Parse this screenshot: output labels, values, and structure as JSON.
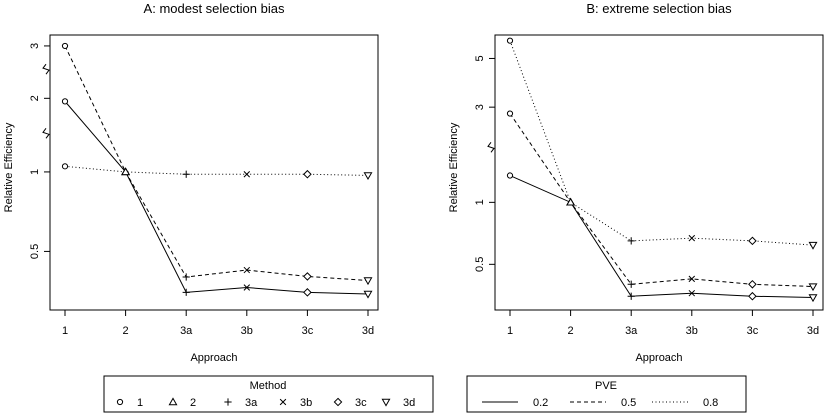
{
  "chart_data": [
    {
      "type": "line",
      "title": "A: modest selection bias",
      "xlabel": "Approach",
      "ylabel": "Relative Efficiency",
      "categories": [
        "1",
        "2",
        "3a",
        "3b",
        "3c",
        "3d"
      ],
      "y_scale": "log",
      "y_ticks": [
        {
          "label": "3",
          "value": 3.0
        },
        {
          "label": "2",
          "value": 1.9
        },
        {
          "label": "1",
          "value": 1.0
        },
        {
          "label": "0.5",
          "value": 0.5
        }
      ],
      "axis_break_marks": [
        2.45,
        1.4
      ],
      "ylim": [
        0.3,
        3.3
      ],
      "series": [
        {
          "name": "0.2",
          "linestyle": "solid",
          "values": [
            1.85,
            1.0,
            0.35,
            0.365,
            0.35,
            0.345
          ]
        },
        {
          "name": "0.5",
          "linestyle": "dashed",
          "values": [
            3.0,
            1.0,
            0.4,
            0.425,
            0.402,
            0.388
          ]
        },
        {
          "name": "0.8",
          "linestyle": "dotted",
          "values": [
            1.05,
            1.0,
            0.98,
            0.98,
            0.98,
            0.97
          ]
        }
      ]
    },
    {
      "type": "line",
      "title": "B: extreme selection bias",
      "xlabel": "Approach",
      "ylabel": "Relative Efficiency",
      "categories": [
        "1",
        "2",
        "3a",
        "3b",
        "3c",
        "3d"
      ],
      "y_scale": "log",
      "y_ticks": [
        {
          "label": "5",
          "value": 5.0
        },
        {
          "label": "3",
          "value": 2.9
        },
        {
          "label": "1",
          "value": 1.0
        },
        {
          "label": "0.5",
          "value": 0.5
        }
      ],
      "axis_break_marks": [
        1.85
      ],
      "ylim": [
        0.3,
        6.5
      ],
      "series": [
        {
          "name": "0.2",
          "linestyle": "solid",
          "values": [
            1.35,
            1.0,
            0.35,
            0.362,
            0.35,
            0.345
          ]
        },
        {
          "name": "0.5",
          "linestyle": "dashed",
          "values": [
            2.7,
            1.0,
            0.4,
            0.425,
            0.4,
            0.39
          ]
        },
        {
          "name": "0.8",
          "linestyle": "dotted",
          "values": [
            6.1,
            1.0,
            0.65,
            0.67,
            0.65,
            0.62
          ]
        }
      ]
    }
  ],
  "legends": {
    "method": {
      "title": "Method",
      "items": [
        {
          "label": "1",
          "symbol": "circle"
        },
        {
          "label": "2",
          "symbol": "triangle"
        },
        {
          "label": "3a",
          "symbol": "plus"
        },
        {
          "label": "3b",
          "symbol": "cross"
        },
        {
          "label": "3c",
          "symbol": "diamond"
        },
        {
          "label": "3d",
          "symbol": "triangle-down"
        }
      ]
    },
    "pve": {
      "title": "PVE",
      "items": [
        {
          "label": "0.2",
          "linestyle": "solid"
        },
        {
          "label": "0.5",
          "linestyle": "dashed"
        },
        {
          "label": "0.8",
          "linestyle": "dotted"
        }
      ]
    }
  }
}
